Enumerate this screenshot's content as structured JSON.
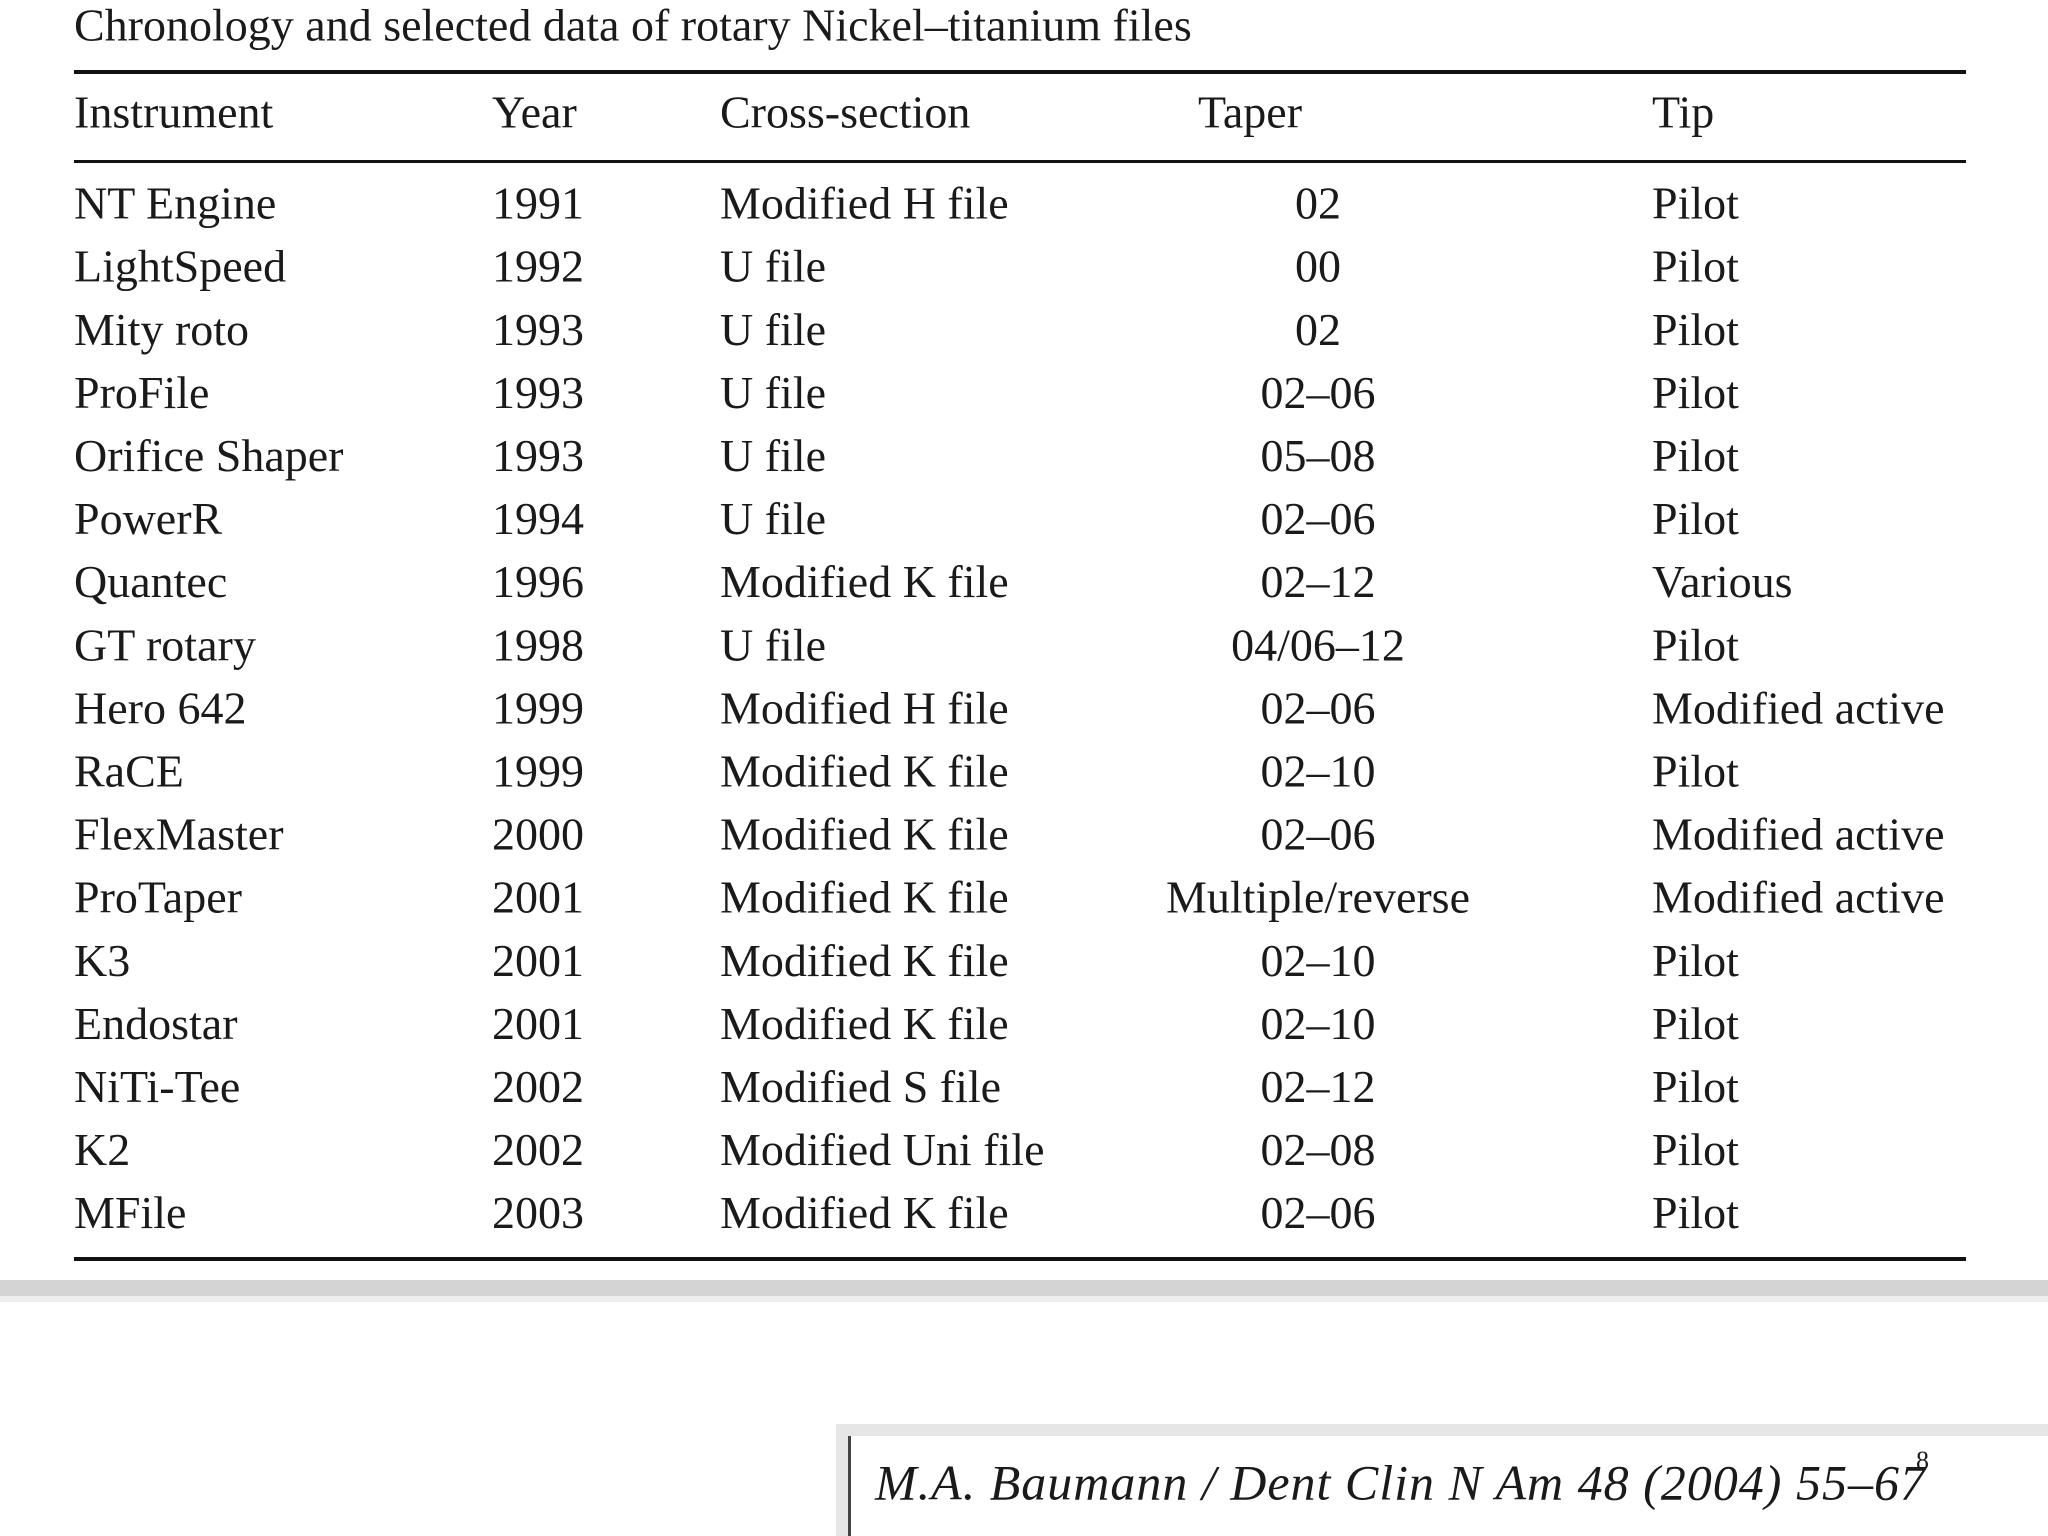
{
  "title": "Chronology and selected data of rotary Nickel–titanium files",
  "table": {
    "header": [
      "Instrument",
      "Year",
      "Cross-section",
      "Taper",
      "Tip"
    ],
    "rows": [
      [
        "NT Engine",
        "1991",
        "Modified H file",
        "02",
        "Pilot"
      ],
      [
        "LightSpeed",
        "1992",
        "U file",
        "00",
        "Pilot"
      ],
      [
        "Mity roto",
        "1993",
        "U file",
        "02",
        "Pilot"
      ],
      [
        "ProFile",
        "1993",
        "U file",
        "02–06",
        "Pilot"
      ],
      [
        "Orifice Shaper",
        "1993",
        "U file",
        "05–08",
        "Pilot"
      ],
      [
        "PowerR",
        "1994",
        "U file",
        "02–06",
        "Pilot"
      ],
      [
        "Quantec",
        "1996",
        "Modified K file",
        "02–12",
        "Various"
      ],
      [
        "GT rotary",
        "1998",
        "U file",
        "04/06–12",
        "Pilot"
      ],
      [
        "Hero 642",
        "1999",
        "Modified H file",
        "02–06",
        "Modified active"
      ],
      [
        "RaCE",
        "1999",
        "Modified K file",
        "02–10",
        "Pilot"
      ],
      [
        "FlexMaster",
        "2000",
        "Modified K file",
        "02–06",
        "Modified active"
      ],
      [
        "ProTaper",
        "2001",
        "Modified K file",
        "Multiple/reverse",
        "Modified active"
      ],
      [
        "K3",
        "2001",
        "Modified K file",
        "02–10",
        "Pilot"
      ],
      [
        "Endostar",
        "2001",
        "Modified K file",
        "02–10",
        "Pilot"
      ],
      [
        "NiTi-Tee",
        "2002",
        "Modified S file",
        "02–12",
        "Pilot"
      ],
      [
        "K2",
        "2002",
        "Modified Uni file",
        "02–08",
        "Pilot"
      ],
      [
        "MFile",
        "2003",
        "Modified K file",
        "02–06",
        "Pilot"
      ]
    ]
  },
  "footer": {
    "citation": "M.A. Baumann / Dent Clin N Am 48 (2004) 55–67",
    "page_number": "8"
  }
}
